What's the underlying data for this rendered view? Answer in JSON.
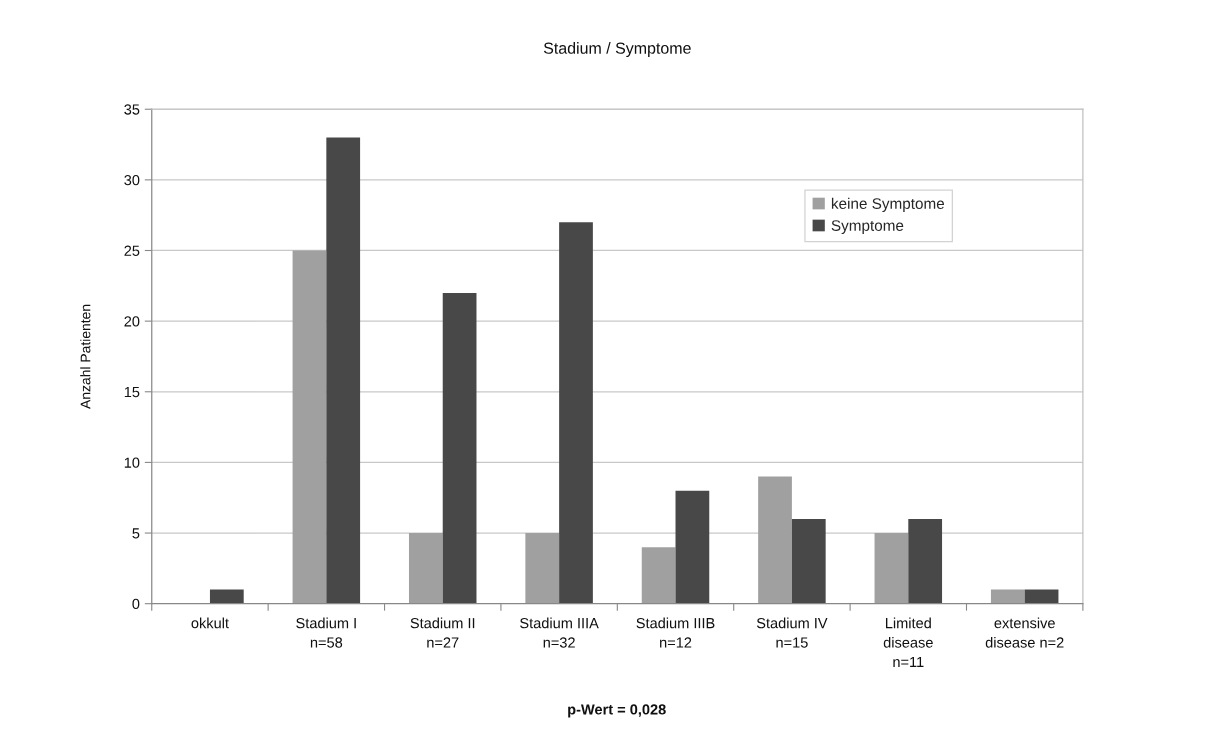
{
  "chart_data": {
    "type": "bar",
    "title": "Stadium / Symptome",
    "ylabel": "Anzahl Patienten",
    "categories": [
      "okkult",
      "Stadium I\nn=58",
      "Stadium II\nn=27",
      "Stadium IIIA\nn=32",
      "Stadium IIIB\nn=12",
      "Stadium IV\nn=15",
      "Limited\ndisease\nn=11",
      "extensive\ndisease n=2"
    ],
    "series": [
      {
        "name": "keine Symptome",
        "color": "#a0a0a0",
        "values": [
          0,
          25,
          5,
          5,
          4,
          9,
          5,
          1
        ]
      },
      {
        "name": "Symptome",
        "color": "#484848",
        "values": [
          1,
          33,
          22,
          27,
          8,
          6,
          6,
          1
        ]
      }
    ],
    "ylim": [
      0,
      35
    ],
    "yticks": [
      0,
      5,
      10,
      15,
      20,
      25,
      30,
      35
    ],
    "grid": "y",
    "legend": "top right",
    "annotations": [
      "p-Wert = 0,028"
    ]
  }
}
